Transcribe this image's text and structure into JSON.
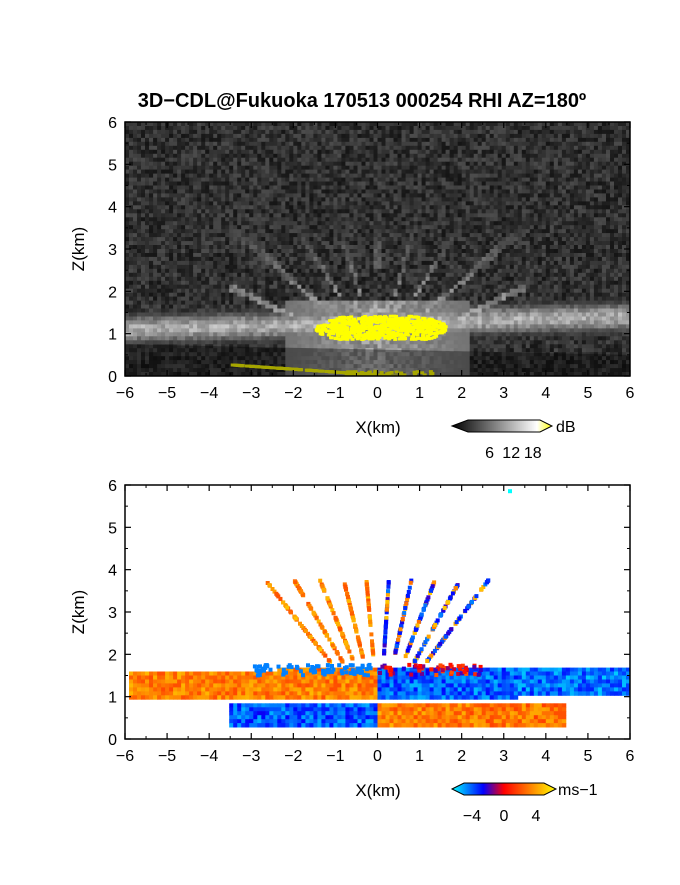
{
  "title": "3D−CDL@Fukuoka 170513 000254 RHI AZ=180º",
  "chart_data": [
    {
      "type": "heatmap",
      "field": "backscatter",
      "xlabel": "X(km)",
      "ylabel": "Z(km)",
      "xlim": [
        -6,
        6
      ],
      "ylim": [
        0,
        6
      ],
      "xticks": [
        "−6",
        "−5",
        "−4",
        "−3",
        "−2",
        "−1",
        "0",
        "1",
        "2",
        "3",
        "4",
        "5",
        "6"
      ],
      "yticks": [
        "0",
        "1",
        "2",
        "3",
        "4",
        "5",
        "6"
      ],
      "grid": false,
      "colorbar": {
        "unit": "dB",
        "ticks": [
          "6",
          "12",
          "18"
        ],
        "range": [
          0,
          20
        ],
        "colors": [
          "#000000",
          "#ffffff",
          "#ffff00"
        ]
      },
      "features": {
        "boundary_layer_band_z": [
          1.0,
          1.5
        ],
        "strong_echo_region_x": [
          -1.5,
          1.6
        ],
        "beam_fan_top_z": 4.2,
        "ground_clutter_x": [
          -3.5,
          0.5
        ]
      }
    },
    {
      "type": "heatmap",
      "field": "radial_velocity",
      "xlabel": "X(km)",
      "ylabel": "Z(km)",
      "xlim": [
        -6,
        6
      ],
      "ylim": [
        0,
        6
      ],
      "xticks": [
        "−6",
        "−5",
        "−4",
        "−3",
        "−2",
        "−1",
        "0",
        "1",
        "2",
        "3",
        "4",
        "5",
        "6"
      ],
      "yticks": [
        "0",
        "1",
        "2",
        "3",
        "4",
        "5",
        "6"
      ],
      "grid": false,
      "colorbar": {
        "unit": "ms−1",
        "ticks": [
          "−4",
          "0",
          "4"
        ],
        "range": [
          -5,
          5
        ],
        "colors": [
          "#00ffff",
          "#0000ff",
          "#ff0000",
          "#ffff00"
        ]
      },
      "features": {
        "upper_band_z": [
          1.0,
          1.6
        ],
        "lower_band_z": [
          0.3,
          0.8
        ],
        "velocity_upper_left": 2.5,
        "velocity_upper_right": -3,
        "velocity_lower_left": -3,
        "velocity_lower_right": 2.5
      }
    }
  ]
}
